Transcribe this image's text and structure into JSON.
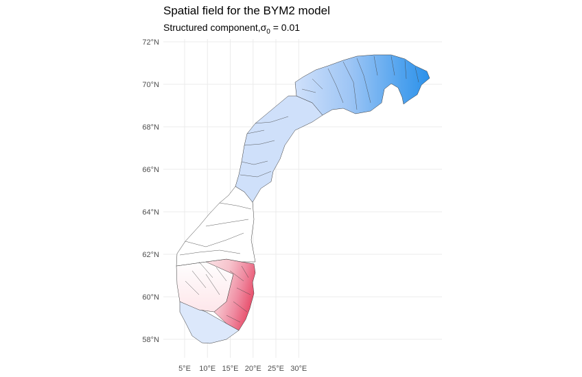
{
  "title": "Spatial field for the BYM2 model",
  "subtitle": {
    "prefix": "Structured component,",
    "symbol": "σ",
    "subscript": "0",
    "suffix": " = 0.01"
  },
  "colors": {
    "high_positive": "#e8526e",
    "mid_positive": "#f7b8c3",
    "light_positive": "#fde6ea",
    "neutral": "#ffffff",
    "light_negative": "#cfe0fa",
    "mid_negative": "#7db5f2",
    "high_negative": "#2b91ea",
    "border": "#333333"
  },
  "axes": {
    "x_ticks": [
      {
        "value": 5,
        "label": "5°E"
      },
      {
        "value": 10,
        "label": "10°E"
      },
      {
        "value": 15,
        "label": "15°E"
      },
      {
        "value": 20,
        "label": "20°E"
      },
      {
        "value": 25,
        "label": "25°E"
      },
      {
        "value": 30,
        "label": "30°E"
      }
    ],
    "y_ticks": [
      {
        "value": 58,
        "label": "58°N"
      },
      {
        "value": 60,
        "label": "60°N"
      },
      {
        "value": 62,
        "label": "62°N"
      },
      {
        "value": 64,
        "label": "64°N"
      },
      {
        "value": 66,
        "label": "66°N"
      },
      {
        "value": 68,
        "label": "68°N"
      },
      {
        "value": 70,
        "label": "70°N"
      },
      {
        "value": 72,
        "label": "72°N"
      }
    ]
  }
}
